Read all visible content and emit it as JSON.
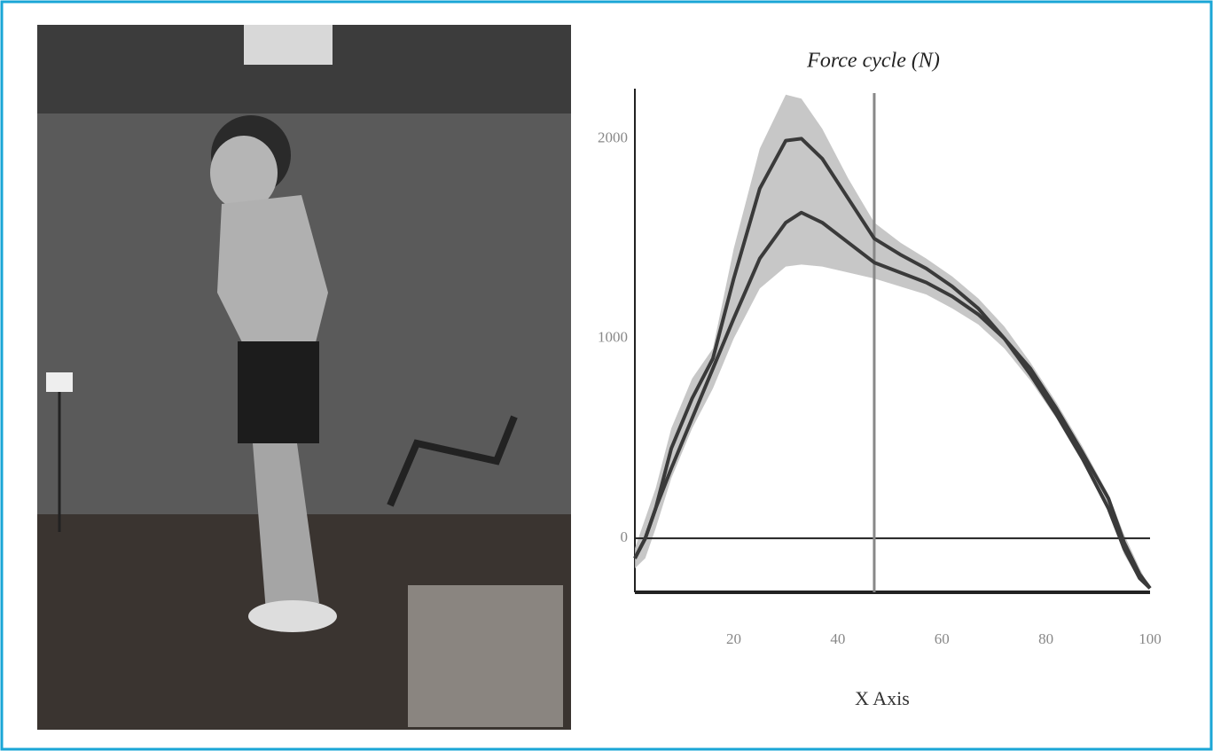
{
  "chart_data": {
    "type": "line",
    "title": "Force cycle (N)",
    "xlabel": "X Axis",
    "x": [
      1,
      3,
      5,
      8,
      12,
      16,
      20,
      25,
      30,
      33,
      37,
      42,
      47,
      52,
      57,
      62,
      67,
      72,
      77,
      82,
      87,
      92,
      95,
      98,
      100
    ],
    "series": [
      {
        "color": "#3a3a3a",
        "values": [
          -100,
          0,
          150,
          450,
          700,
          900,
          1300,
          1750,
          1990,
          2000,
          1900,
          1700,
          1500,
          1420,
          1350,
          1260,
          1150,
          1000,
          820,
          620,
          400,
          150,
          -50,
          -200,
          -250
        ]
      },
      {
        "color": "#3a3a3a",
        "values": [
          -100,
          0,
          150,
          350,
          600,
          850,
          1100,
          1400,
          1580,
          1630,
          1580,
          1480,
          1380,
          1330,
          1280,
          1210,
          1120,
          1000,
          850,
          650,
          430,
          200,
          -20,
          -180,
          -250
        ]
      }
    ],
    "band": {
      "color": "#bdbdbd",
      "upper": [
        -50,
        100,
        250,
        550,
        800,
        950,
        1450,
        1950,
        2220,
        2200,
        2050,
        1800,
        1580,
        1480,
        1400,
        1310,
        1200,
        1060,
        880,
        680,
        460,
        220,
        20,
        -150,
        -250
      ],
      "lower": [
        -150,
        -100,
        50,
        300,
        550,
        750,
        1000,
        1250,
        1360,
        1370,
        1360,
        1330,
        1300,
        1260,
        1220,
        1150,
        1070,
        950,
        790,
        600,
        380,
        150,
        -80,
        -210,
        -250
      ]
    },
    "vline": 47,
    "xlim": [
      1,
      100
    ],
    "xticks": [
      20,
      40,
      60,
      80,
      100
    ],
    "ylim": [
      -270,
      2250
    ],
    "yticks": [
      0,
      1000,
      2000
    ],
    "zero_line": true
  }
}
